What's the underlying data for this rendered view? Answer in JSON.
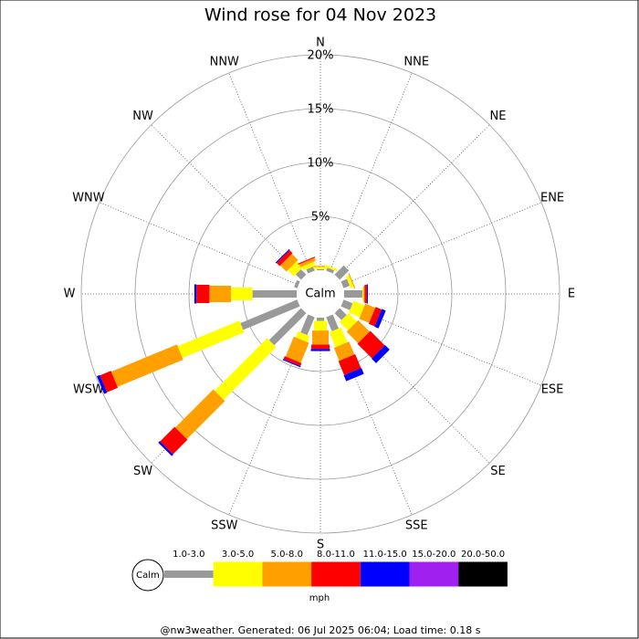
{
  "chart_data": {
    "type": "windrose",
    "title": "Wind rose for 04 Nov 2023",
    "categories": [
      "N",
      "NNE",
      "NE",
      "ENE",
      "E",
      "ESE",
      "SE",
      "SSE",
      "S",
      "SSW",
      "SW",
      "WSW",
      "W",
      "WNW",
      "NW",
      "NNW"
    ],
    "series": [
      {
        "name": "1.0-3.0",
        "color": "#999999",
        "values": [
          0.1,
          0.3,
          1.2,
          0.6,
          1.7,
          0.9,
          0.9,
          1.4,
          0.3,
          1.8,
          4.2,
          5.7,
          4.1,
          0.3,
          0.7,
          0.4
        ]
      },
      {
        "name": "3.0-5.0",
        "color": "#ffff00",
        "values": [
          0.2,
          0.2,
          0,
          0.3,
          0.1,
          1.1,
          1.1,
          1.5,
          0.9,
          0.6,
          6.9,
          6.2,
          2.0,
          0,
          0.8,
          0.4
        ]
      },
      {
        "name": "5.0-8.0",
        "color": "#ffa000",
        "values": [
          0.1,
          0,
          0,
          0.1,
          0.1,
          1.0,
          1.5,
          1.3,
          1.3,
          2.0,
          5.0,
          6.6,
          2.0,
          0,
          0.8,
          0.3
        ]
      },
      {
        "name": "8.0-11.0",
        "color": "#ff0000",
        "values": [
          0,
          0,
          0,
          0,
          0.2,
          0.6,
          1.9,
          1.4,
          0.4,
          0.3,
          1.9,
          1.1,
          1.2,
          0,
          0.4,
          0.1
        ]
      },
      {
        "name": "11.0-15.0",
        "color": "#0000ff",
        "values": [
          0,
          0,
          0,
          0,
          0.1,
          0.4,
          0.6,
          0.6,
          0.2,
          0.1,
          0.2,
          0.3,
          0.2,
          0,
          0.1,
          0
        ]
      },
      {
        "name": "15.0-20.0",
        "color": "#a020f0",
        "values": [
          0,
          0,
          0,
          0,
          0,
          0,
          0,
          0,
          0,
          0,
          0,
          0,
          0,
          0,
          0,
          0
        ]
      },
      {
        "name": "20.0-50.0",
        "color": "#000000",
        "values": [
          0,
          0,
          0,
          0,
          0,
          0,
          0,
          0,
          0,
          0,
          0,
          0,
          0,
          0,
          0,
          0
        ]
      }
    ],
    "rlim": [
      0,
      20
    ],
    "rticks": [
      {
        "value": 5,
        "label": "5%"
      },
      {
        "value": 10,
        "label": "10%"
      },
      {
        "value": 15,
        "label": "15%"
      },
      {
        "value": 20,
        "label": "20%"
      }
    ],
    "calm_label": "Calm",
    "legend_title": "mph",
    "footer": "@nw3weather. Generated: 06 Jul 2025 06:04; Load time: 0.18 s"
  }
}
